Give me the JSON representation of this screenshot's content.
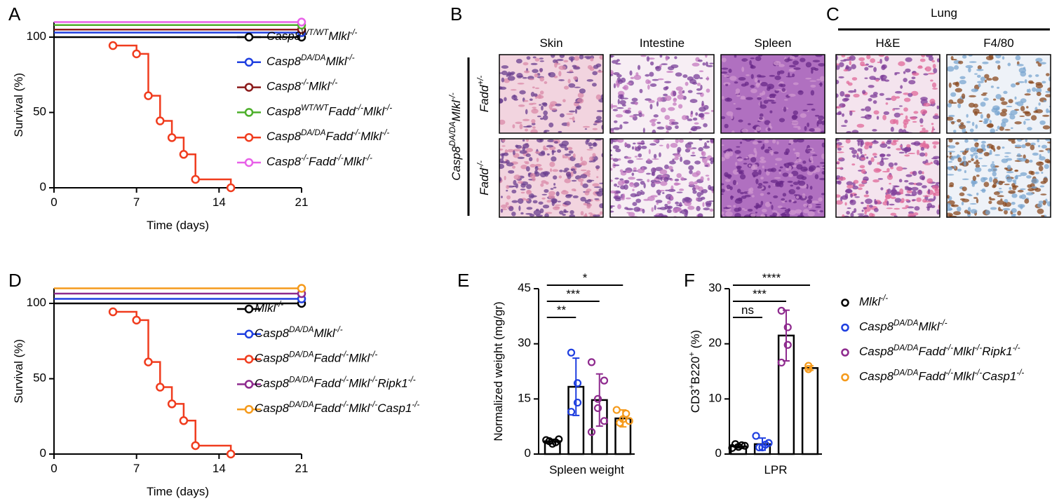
{
  "panel_labels": [
    "A",
    "B",
    "C",
    "D",
    "E",
    "F"
  ],
  "histology": {
    "B": {
      "columns": [
        "Skin",
        "Intestine",
        "Spleen"
      ],
      "rows": [
        "Fadd+/-",
        "Fadd-/-"
      ],
      "group": "Casp8DA/DAMlkl-/-"
    },
    "C": {
      "title": "Lung",
      "columns": [
        "H&E",
        "F4/80"
      ]
    }
  },
  "chart_data": [
    {
      "type": "line",
      "step": true,
      "xlabel": "Time (days)",
      "ylabel": "Survival (%)",
      "xlim": [
        0,
        21
      ],
      "xticks": [
        0,
        7,
        14,
        21
      ],
      "ylim": [
        0,
        110
      ],
      "yticks": [
        0,
        50,
        100
      ],
      "series": [
        {
          "name": "Casp8WT/WTMlkl-/-",
          "color": "#000000",
          "x": [
            0,
            21
          ],
          "values": [
            100,
            100
          ]
        },
        {
          "name": "Casp8DA/DAMlkl-/-",
          "color": "#1f3fe0",
          "x": [
            0,
            21
          ],
          "values": [
            103,
            103
          ]
        },
        {
          "name": "Casp8-/-Mlkl-/-",
          "color": "#8b1a1a",
          "x": [
            0,
            21
          ],
          "values": [
            105,
            105
          ]
        },
        {
          "name": "Casp8WT/WTFadd-/-Mlkl-/-",
          "color": "#4caf2a",
          "x": [
            0,
            21
          ],
          "values": [
            108,
            108
          ]
        },
        {
          "name": "Casp8DA/DAFadd-/-Mlkl-/-",
          "color": "#f03c1e",
          "x": [
            5,
            7,
            8,
            9,
            10,
            11,
            12,
            15
          ],
          "values": [
            94.4,
            88.9,
            61.1,
            44.4,
            33.3,
            22.2,
            5.6,
            0
          ]
        },
        {
          "name": "Casp8-/-Fadd-/-Mlkl-/-",
          "color": "#e860e8",
          "x": [
            0,
            21
          ],
          "values": [
            110,
            110
          ]
        }
      ]
    },
    {
      "type": "line",
      "step": true,
      "xlabel": "Time (days)",
      "ylabel": "Survival (%)",
      "xlim": [
        0,
        21
      ],
      "xticks": [
        0,
        7,
        14,
        21
      ],
      "ylim": [
        0,
        110
      ],
      "yticks": [
        0,
        50,
        100
      ],
      "series": [
        {
          "name": "Mlkl-/-",
          "color": "#000000",
          "x": [
            0,
            21
          ],
          "values": [
            100,
            100
          ]
        },
        {
          "name": "Casp8DA/DAMlkl-/-",
          "color": "#1f3fe0",
          "x": [
            0,
            21
          ],
          "values": [
            103,
            103
          ]
        },
        {
          "name": "Casp8DA/DAFadd-/-Mlkl-/-",
          "color": "#f03c1e",
          "x": [
            5,
            7,
            8,
            9,
            10,
            11,
            12,
            15
          ],
          "values": [
            94.4,
            88.9,
            61.1,
            44.4,
            33.3,
            22.2,
            5.6,
            0
          ]
        },
        {
          "name": "Casp8DA/DAFadd-/-Mlkl-/-Ripk1-/-",
          "color": "#8e2a8e",
          "x": [
            0,
            21
          ],
          "values": [
            106.5,
            106.5
          ]
        },
        {
          "name": "Casp8DA/DAFadd-/-Mlkl-/-Casp1-/-",
          "color": "#f59a1b",
          "x": [
            0,
            21
          ],
          "values": [
            110,
            110
          ]
        }
      ]
    },
    {
      "type": "bar",
      "xlabel": "Spleen weight",
      "ylabel": "Normalized weight (mg/gr)",
      "ylim": [
        0,
        45
      ],
      "yticks": [
        0,
        15,
        30,
        45
      ],
      "categories": [
        null,
        null,
        null,
        null
      ],
      "values": [
        3.5,
        18.3,
        14.7,
        9.7
      ],
      "errors": [
        0.5,
        7.8,
        7.1,
        2.3
      ],
      "colors": [
        "#000000",
        "#1f3fe0",
        "#8e2a8e",
        "#f59a1b"
      ],
      "points": [
        [
          3.8,
          3.2,
          2.8,
          3.5,
          4.0
        ],
        [
          27.6,
          19.3,
          14.0,
          11.5
        ],
        [
          25.0,
          20.0,
          15.0,
          12.5,
          9.0,
          6.0
        ],
        [
          12.0,
          11.0,
          9.5,
          8.5,
          9.0
        ]
      ],
      "annotations": [
        {
          "text": "**",
          "categories": [
            0,
            1
          ]
        },
        {
          "text": "***",
          "categories": [
            0,
            2
          ]
        },
        {
          "text": "*",
          "categories": [
            0,
            3
          ]
        }
      ]
    },
    {
      "type": "bar",
      "xlabel": "LPR",
      "ylabel": "CD3+B220+ (%)",
      "ylim": [
        0,
        30
      ],
      "yticks": [
        0,
        10,
        20,
        30
      ],
      "categories": [
        null,
        null,
        null,
        null
      ],
      "values": [
        1.4,
        1.8,
        21.5,
        15.6
      ],
      "errors": [
        0.3,
        1.1,
        4.6,
        0.4
      ],
      "series": [
        {
          "name": "Mlkl-/-",
          "color": "#000000"
        },
        {
          "name": "Casp8DA/DAMlkl-/-",
          "color": "#1f3fe0"
        },
        {
          "name": "Casp8DA/DAFadd-/-Mlkl-/-Ripk1-/-",
          "color": "#8e2a8e"
        },
        {
          "name": "Casp8DA/DAFadd-/-Mlkl-/-Casp1-/-",
          "color": "#f59a1b"
        }
      ],
      "points": [
        [
          1.1,
          1.6,
          1.3,
          1.8,
          1.5
        ],
        [
          3.3,
          1.7,
          1.2,
          1.2,
          2.0
        ],
        [
          26.0,
          23.0,
          19.8,
          16.6
        ],
        [
          16.0,
          15.4
        ]
      ],
      "annotations": [
        {
          "text": "ns",
          "categories": [
            0,
            1
          ]
        },
        {
          "text": "***",
          "categories": [
            0,
            2
          ]
        },
        {
          "text": "****",
          "categories": [
            0,
            3
          ]
        }
      ]
    }
  ]
}
